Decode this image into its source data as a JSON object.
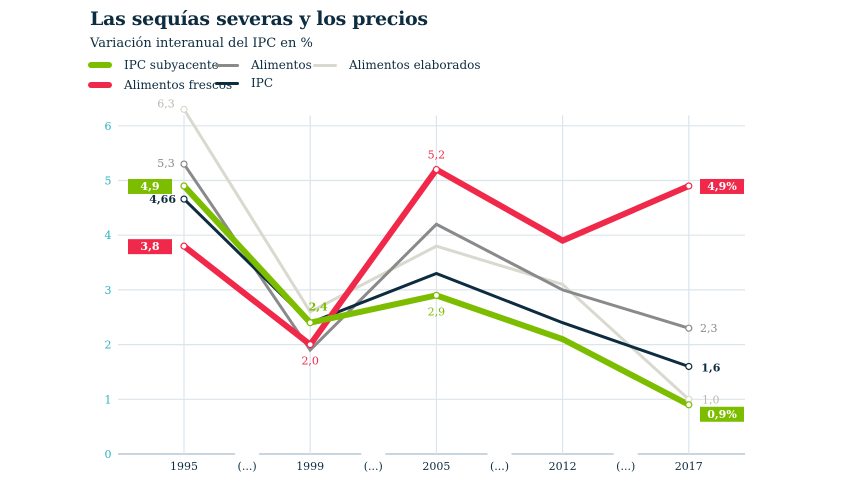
{
  "chart_data": {
    "type": "line",
    "title": "Las sequías severas y los precios",
    "subtitle": "Variación interanual del IPC en %",
    "categories": [
      "1995",
      "(...)",
      "1999",
      "(...)",
      "2005",
      "(...)",
      "2012",
      "(...)",
      "2017"
    ],
    "x": [
      "1995",
      "1999",
      "2005",
      "2012",
      "2017"
    ],
    "ylim": [
      0,
      6.4
    ],
    "yticks": [
      "0",
      "1",
      "2",
      "3",
      "4",
      "5",
      "6"
    ],
    "grid": true,
    "legend_placement": "top-left",
    "series": [
      {
        "name": "IPC subyacente",
        "color": "#7dbd00",
        "values": [
          4.9,
          2.4,
          2.9,
          2.1,
          0.9
        ]
      },
      {
        "name": "Alimentos",
        "color": "#8a8a8a",
        "values": [
          5.3,
          1.9,
          4.2,
          3.0,
          2.3
        ]
      },
      {
        "name": "Alimentos elaborados",
        "color": "#d9d9cf",
        "values": [
          6.3,
          2.6,
          3.8,
          3.1,
          1.0
        ]
      },
      {
        "name": "Alimentos frescos",
        "color": "#f0284a",
        "values": [
          3.8,
          2.0,
          5.2,
          3.9,
          4.9
        ]
      },
      {
        "name": "IPC",
        "color": "#0d2c40",
        "values": [
          4.66,
          2.4,
          3.3,
          2.4,
          1.6
        ]
      }
    ],
    "annotations": [
      {
        "series": 2,
        "point": 0,
        "text": "6,3"
      },
      {
        "series": 1,
        "point": 0,
        "text": "5,3"
      },
      {
        "series": 0,
        "point": 0,
        "text": "4,9"
      },
      {
        "series": 4,
        "point": 0,
        "text": "4,66"
      },
      {
        "series": 3,
        "point": 0,
        "text": "3,8"
      },
      {
        "series": 0,
        "point": 1,
        "text": "2,4"
      },
      {
        "series": 3,
        "point": 1,
        "text": "2,0"
      },
      {
        "series": 3,
        "point": 2,
        "text": "5,2"
      },
      {
        "series": 0,
        "point": 2,
        "text": "2,9"
      },
      {
        "series": 3,
        "point": 4,
        "text": "4,9%"
      },
      {
        "series": 1,
        "point": 4,
        "text": "2,3"
      },
      {
        "series": 4,
        "point": 4,
        "text": "1,6"
      },
      {
        "series": 2,
        "point": 4,
        "text": "1,0"
      },
      {
        "series": 0,
        "point": 4,
        "text": "0,9%"
      }
    ],
    "tick_color": "#2bb3c0"
  }
}
